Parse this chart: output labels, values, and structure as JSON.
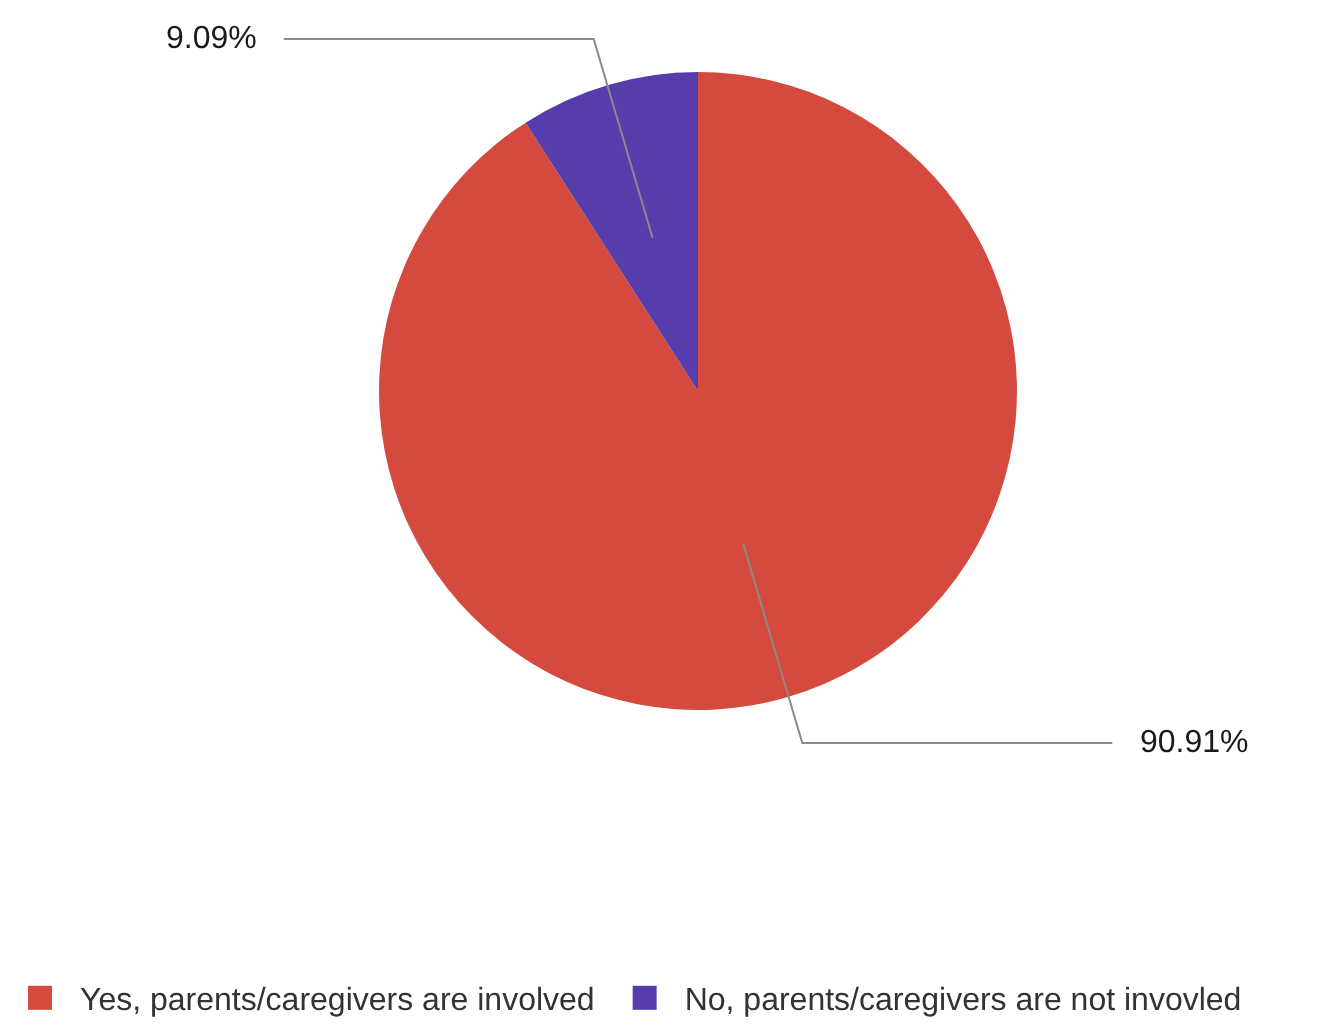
{
  "chart_data": {
    "type": "pie",
    "categories": [
      "Yes, parents/caregivers are involved",
      "No, parents/caregivers are not invovled"
    ],
    "values": [
      90.91,
      9.09
    ],
    "colors": [
      "#d54a3f",
      "#573cab"
    ],
    "value_labels": [
      "90.91%",
      "9.09%"
    ],
    "legend": "bottom"
  }
}
